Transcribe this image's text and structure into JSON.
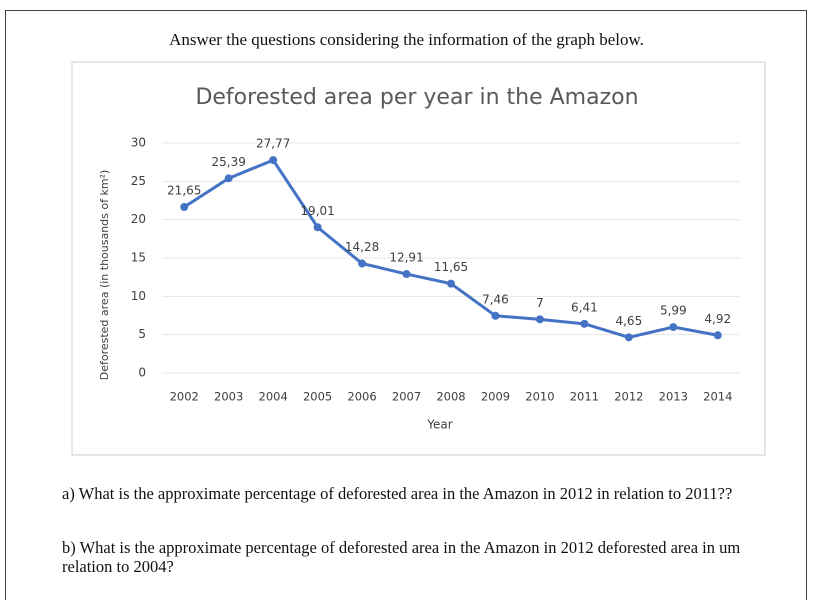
{
  "header": {
    "title": "Answer the questions considering the information of the graph below."
  },
  "chart_data": {
    "type": "line",
    "title": "Deforested area per year in the Amazon",
    "x_label": "Year",
    "y_label": "Deforested area (in thousands of km²)",
    "categories": [
      "2002",
      "2003",
      "2004",
      "2005",
      "2006",
      "2007",
      "2008",
      "2009",
      "2010",
      "2011",
      "2012",
      "2013",
      "2014"
    ],
    "values": [
      21.65,
      25.39,
      27.77,
      19.01,
      14.28,
      12.91,
      11.65,
      7.46,
      7,
      6.41,
      4.65,
      5.99,
      4.92
    ],
    "value_labels": [
      "21,65",
      "25,39",
      "27,77",
      "19,01",
      "14,28",
      "12,91",
      "11,65",
      "7,46",
      "7",
      "6,41",
      "4,65",
      "5,99",
      "4,92"
    ],
    "color": "#4472c4",
    "ylim": [
      0,
      30
    ],
    "yticks": [
      0,
      5,
      10,
      15,
      20,
      25,
      30
    ],
    "grid": true
  },
  "questions": [
    "a) What is the approximate percentage of deforested area in the Amazon in 2012 in relation to 2011??",
    "b) What is the approximate percentage of deforested area in the Amazon in 2012 deforested area in um relation to 2004?"
  ]
}
